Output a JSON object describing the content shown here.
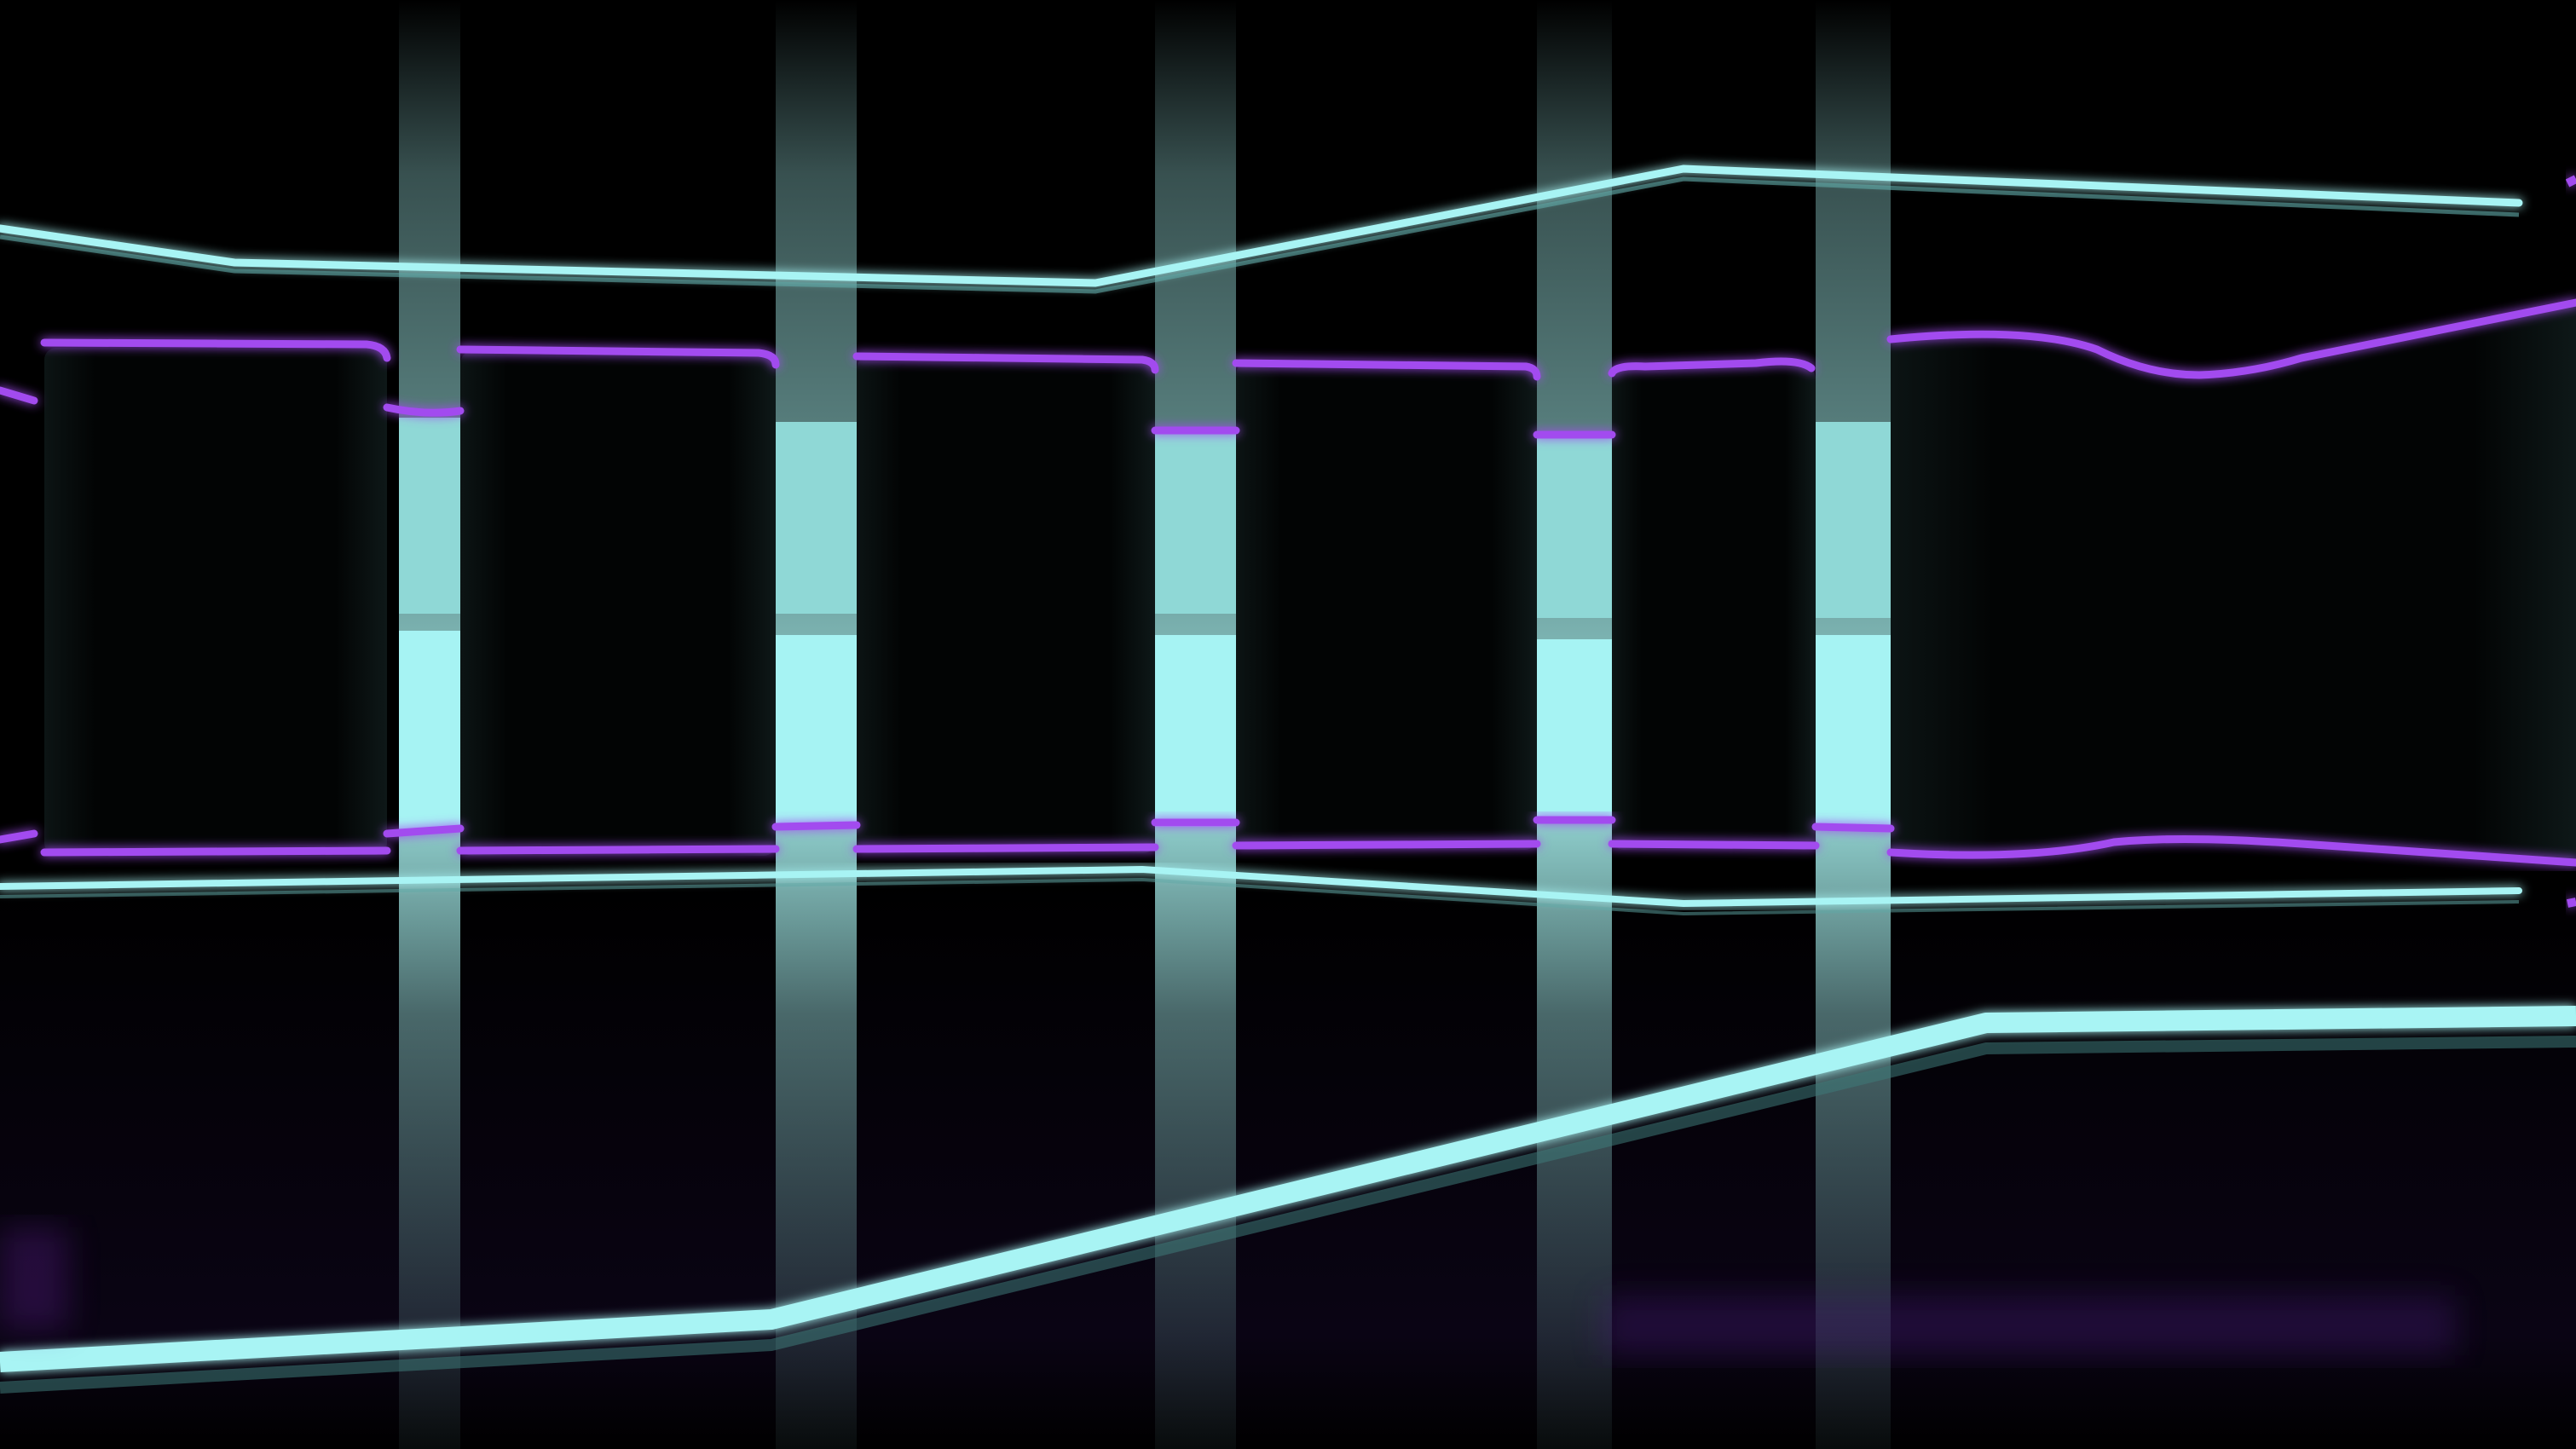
{
  "scene": {
    "background_color": "#000000",
    "neon_cyan": "#a8f4f4",
    "neon_cyan_soft": "#8fdad8",
    "neon_purple": "#a24bef",
    "panel_dark": "#050808"
  }
}
